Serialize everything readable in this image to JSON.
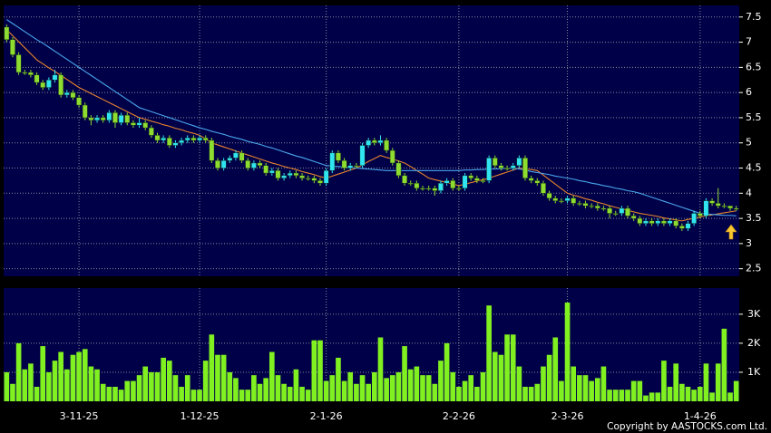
{
  "chart_data": {
    "type": "candlestick",
    "categories": [
      null,
      null,
      null,
      null,
      null,
      null,
      null,
      null,
      null,
      null,
      null,
      null,
      "3-11-25",
      null,
      null,
      null,
      null,
      null,
      null,
      null,
      null,
      null,
      null,
      null,
      null,
      null,
      null,
      null,
      null,
      null,
      null,
      null,
      "1-12-25",
      null,
      null,
      null,
      null,
      null,
      null,
      null,
      null,
      null,
      null,
      null,
      null,
      null,
      null,
      null,
      null,
      null,
      null,
      null,
      null,
      "2-1-26",
      null,
      null,
      null,
      null,
      null,
      null,
      null,
      null,
      null,
      null,
      null,
      null,
      null,
      null,
      null,
      null,
      null,
      null,
      null,
      null,
      null,
      "2-2-26",
      null,
      null,
      null,
      null,
      null,
      null,
      null,
      null,
      null,
      null,
      null,
      null,
      null,
      null,
      null,
      null,
      null,
      "2-3-26",
      null,
      null,
      null,
      null,
      null,
      null,
      null,
      null,
      null,
      null,
      null,
      null,
      null,
      null,
      null,
      null,
      null,
      null,
      null,
      null,
      null,
      "1-4-26",
      null,
      null,
      null,
      null,
      null,
      null
    ],
    "ohlc": [
      [
        7.3,
        7.35,
        7.0,
        7.05
      ],
      [
        7.05,
        7.1,
        6.7,
        6.75
      ],
      [
        6.75,
        6.8,
        6.35,
        6.4
      ],
      [
        6.4,
        6.45,
        6.35,
        6.4
      ],
      [
        6.4,
        6.45,
        6.3,
        6.35
      ],
      [
        6.35,
        6.4,
        6.15,
        6.2
      ],
      [
        6.2,
        6.25,
        6.05,
        6.1
      ],
      [
        6.1,
        6.3,
        6.05,
        6.25
      ],
      [
        6.25,
        6.45,
        6.2,
        6.35
      ],
      [
        6.35,
        6.4,
        5.9,
        5.95
      ],
      [
        5.95,
        6.05,
        5.9,
        6.0
      ],
      [
        6.0,
        6.05,
        5.85,
        5.9
      ],
      [
        5.9,
        5.95,
        5.7,
        5.75
      ],
      [
        5.75,
        5.8,
        5.45,
        5.5
      ],
      [
        5.5,
        5.55,
        5.35,
        5.45
      ],
      [
        5.45,
        5.55,
        5.4,
        5.5
      ],
      [
        5.5,
        5.55,
        5.4,
        5.45
      ],
      [
        5.45,
        5.65,
        5.4,
        5.6
      ],
      [
        5.6,
        5.65,
        5.3,
        5.4
      ],
      [
        5.4,
        5.6,
        5.35,
        5.55
      ],
      [
        5.55,
        5.6,
        5.35,
        5.4
      ],
      [
        5.4,
        5.45,
        5.3,
        5.35
      ],
      [
        5.35,
        5.5,
        5.3,
        5.4
      ],
      [
        5.4,
        5.45,
        5.25,
        5.3
      ],
      [
        5.3,
        5.35,
        5.1,
        5.15
      ],
      [
        5.15,
        5.2,
        5.0,
        5.05
      ],
      [
        5.05,
        5.15,
        5.0,
        5.1
      ],
      [
        5.1,
        5.15,
        4.9,
        4.95
      ],
      [
        4.95,
        5.05,
        4.9,
        5.0
      ],
      [
        5.0,
        5.1,
        4.95,
        5.05
      ],
      [
        5.05,
        5.15,
        5.0,
        5.1
      ],
      [
        5.1,
        5.15,
        5.0,
        5.05
      ],
      [
        5.05,
        5.15,
        5.0,
        5.1
      ],
      [
        5.1,
        5.15,
        5.0,
        5.05
      ],
      [
        5.05,
        5.1,
        4.6,
        4.65
      ],
      [
        4.65,
        4.7,
        4.45,
        4.5
      ],
      [
        4.5,
        4.7,
        4.45,
        4.65
      ],
      [
        4.65,
        4.75,
        4.6,
        4.7
      ],
      [
        4.7,
        4.85,
        4.65,
        4.8
      ],
      [
        4.8,
        4.85,
        4.6,
        4.65
      ],
      [
        4.65,
        4.7,
        4.45,
        4.5
      ],
      [
        4.5,
        4.65,
        4.45,
        4.6
      ],
      [
        4.6,
        4.65,
        4.5,
        4.55
      ],
      [
        4.55,
        4.6,
        4.35,
        4.4
      ],
      [
        4.4,
        4.5,
        4.35,
        4.45
      ],
      [
        4.45,
        4.5,
        4.25,
        4.3
      ],
      [
        4.3,
        4.4,
        4.25,
        4.35
      ],
      [
        4.35,
        4.45,
        4.3,
        4.4
      ],
      [
        4.4,
        4.45,
        4.3,
        4.35
      ],
      [
        4.35,
        4.4,
        4.25,
        4.3
      ],
      [
        4.3,
        4.35,
        4.25,
        4.3
      ],
      [
        4.3,
        4.35,
        4.2,
        4.25
      ],
      [
        4.25,
        4.3,
        4.15,
        4.2
      ],
      [
        4.2,
        4.5,
        4.15,
        4.45
      ],
      [
        4.45,
        4.85,
        4.4,
        4.8
      ],
      [
        4.8,
        4.85,
        4.6,
        4.65
      ],
      [
        4.65,
        4.7,
        4.45,
        4.5
      ],
      [
        4.5,
        4.6,
        4.45,
        4.55
      ],
      [
        4.55,
        4.6,
        4.5,
        4.55
      ],
      [
        4.55,
        5.0,
        4.5,
        4.95
      ],
      [
        4.95,
        5.1,
        4.9,
        5.05
      ],
      [
        5.05,
        5.1,
        4.95,
        5.0
      ],
      [
        5.0,
        5.15,
        4.95,
        5.05
      ],
      [
        5.05,
        5.1,
        4.8,
        4.85
      ],
      [
        4.85,
        4.9,
        4.55,
        4.6
      ],
      [
        4.6,
        4.65,
        4.3,
        4.35
      ],
      [
        4.35,
        4.4,
        4.15,
        4.2
      ],
      [
        4.2,
        4.25,
        4.15,
        4.2
      ],
      [
        4.2,
        4.25,
        4.05,
        4.1
      ],
      [
        4.1,
        4.15,
        4.05,
        4.1
      ],
      [
        4.1,
        4.15,
        4.05,
        4.1
      ],
      [
        4.1,
        4.15,
        3.95,
        4.05
      ],
      [
        4.05,
        4.25,
        4.0,
        4.2
      ],
      [
        4.2,
        4.3,
        4.15,
        4.25
      ],
      [
        4.25,
        4.3,
        4.05,
        4.1
      ],
      [
        4.1,
        4.15,
        4.05,
        4.1
      ],
      [
        4.1,
        4.4,
        4.05,
        4.35
      ],
      [
        4.35,
        4.4,
        4.25,
        4.3
      ],
      [
        4.3,
        4.35,
        4.2,
        4.25
      ],
      [
        4.25,
        4.3,
        4.2,
        4.25
      ],
      [
        4.25,
        4.75,
        4.2,
        4.7
      ],
      [
        4.7,
        4.75,
        4.5,
        4.55
      ],
      [
        4.55,
        4.6,
        4.45,
        4.5
      ],
      [
        4.5,
        4.55,
        4.45,
        4.5
      ],
      [
        4.5,
        4.6,
        4.45,
        4.55
      ],
      [
        4.55,
        4.75,
        4.5,
        4.7
      ],
      [
        4.7,
        4.75,
        4.25,
        4.3
      ],
      [
        4.3,
        4.35,
        4.2,
        4.25
      ],
      [
        4.25,
        4.3,
        4.15,
        4.2
      ],
      [
        4.2,
        4.25,
        3.95,
        4.0
      ],
      [
        4.0,
        4.05,
        3.85,
        3.9
      ],
      [
        3.9,
        3.95,
        3.8,
        3.85
      ],
      [
        3.85,
        3.9,
        3.8,
        3.85
      ],
      [
        3.85,
        3.95,
        3.8,
        3.9
      ],
      [
        3.9,
        3.95,
        3.75,
        3.8
      ],
      [
        3.8,
        3.85,
        3.75,
        3.8
      ],
      [
        3.8,
        3.85,
        3.7,
        3.75
      ],
      [
        3.75,
        3.8,
        3.7,
        3.75
      ],
      [
        3.75,
        3.8,
        3.65,
        3.7
      ],
      [
        3.7,
        3.75,
        3.65,
        3.7
      ],
      [
        3.7,
        3.75,
        3.5,
        3.6
      ],
      [
        3.6,
        3.65,
        3.55,
        3.6
      ],
      [
        3.6,
        3.75,
        3.55,
        3.7
      ],
      [
        3.7,
        3.75,
        3.5,
        3.55
      ],
      [
        3.55,
        3.6,
        3.45,
        3.5
      ],
      [
        3.5,
        3.55,
        3.35,
        3.4
      ],
      [
        3.4,
        3.5,
        3.35,
        3.45
      ],
      [
        3.45,
        3.5,
        3.35,
        3.4
      ],
      [
        3.4,
        3.5,
        3.35,
        3.45
      ],
      [
        3.45,
        3.5,
        3.35,
        3.4
      ],
      [
        3.4,
        3.5,
        3.35,
        3.45
      ],
      [
        3.45,
        3.5,
        3.3,
        3.35
      ],
      [
        3.35,
        3.4,
        3.25,
        3.3
      ],
      [
        3.3,
        3.45,
        3.25,
        3.4
      ],
      [
        3.4,
        3.65,
        3.35,
        3.6
      ],
      [
        3.6,
        3.65,
        3.5,
        3.55
      ],
      [
        3.55,
        3.9,
        3.5,
        3.85
      ],
      [
        3.85,
        3.9,
        3.75,
        3.8
      ],
      [
        3.8,
        4.1,
        3.7,
        3.75
      ],
      [
        3.75,
        3.8,
        3.7,
        3.75
      ],
      [
        3.75,
        3.75,
        3.65,
        3.7
      ],
      [
        3.7,
        3.75,
        3.65,
        3.7
      ]
    ],
    "up_color": "#30e4f0",
    "down_color": "#8fdc30",
    "ylim": [
      2.35,
      7.73
    ],
    "yticks": [
      2.5,
      3,
      3.5,
      4,
      4.5,
      5,
      5.5,
      6,
      6.5,
      7,
      7.5
    ],
    "grid": true,
    "lines": [
      {
        "color": "#e8842c",
        "values": [
          7.25,
          7.13,
          7.01,
          6.89,
          6.77,
          6.65,
          6.57,
          6.49,
          6.42,
          6.34,
          6.26,
          6.18,
          6.1,
          6.04,
          5.98,
          5.92,
          5.86,
          5.8,
          5.74,
          5.68,
          5.62,
          5.56,
          5.5,
          5.47,
          5.43,
          5.4,
          5.36,
          5.33,
          5.29,
          5.26,
          5.22,
          5.19,
          5.15,
          5.08,
          5.0,
          4.96,
          4.92,
          4.88,
          4.84,
          4.8,
          4.76,
          4.72,
          4.68,
          4.64,
          4.6,
          4.57,
          4.53,
          4.5,
          4.47,
          4.43,
          4.4,
          4.37,
          4.33,
          4.3,
          4.34,
          4.38,
          4.42,
          4.46,
          4.5,
          4.56,
          4.63,
          4.69,
          4.75,
          4.71,
          4.68,
          4.64,
          4.6,
          4.53,
          4.45,
          4.38,
          4.3,
          4.27,
          4.24,
          4.21,
          4.18,
          4.15,
          4.18,
          4.21,
          4.24,
          4.27,
          4.3,
          4.34,
          4.38,
          4.42,
          4.46,
          4.5,
          4.48,
          4.47,
          4.45,
          4.36,
          4.27,
          4.18,
          4.09,
          4.0,
          3.96,
          3.93,
          3.89,
          3.86,
          3.82,
          3.79,
          3.75,
          3.72,
          3.69,
          3.66,
          3.63,
          3.6,
          3.58,
          3.56,
          3.54,
          3.51,
          3.49,
          3.47,
          3.45,
          3.48,
          3.5,
          3.53,
          3.55,
          3.57,
          3.59,
          3.61,
          3.63,
          3.65
        ]
      },
      {
        "color": "#4aa6ec",
        "values": [
          7.45,
          7.37,
          7.29,
          7.21,
          7.13,
          7.05,
          6.98,
          6.9,
          6.82,
          6.74,
          6.66,
          6.58,
          6.5,
          6.42,
          6.34,
          6.26,
          6.18,
          6.1,
          6.02,
          5.94,
          5.86,
          5.78,
          5.7,
          5.66,
          5.62,
          5.58,
          5.54,
          5.5,
          5.46,
          5.42,
          5.38,
          5.34,
          5.3,
          5.27,
          5.23,
          5.2,
          5.17,
          5.13,
          5.1,
          5.07,
          5.03,
          5.0,
          4.97,
          4.93,
          4.9,
          4.86,
          4.82,
          4.78,
          4.74,
          4.71,
          4.67,
          4.63,
          4.59,
          4.55,
          4.54,
          4.53,
          4.52,
          4.51,
          4.5,
          4.49,
          4.48,
          4.47,
          4.46,
          4.45,
          4.45,
          4.45,
          4.45,
          4.45,
          4.45,
          4.45,
          4.45,
          4.45,
          4.45,
          4.45,
          4.45,
          4.45,
          4.46,
          4.46,
          4.47,
          4.47,
          4.48,
          4.48,
          4.49,
          4.49,
          4.5,
          4.48,
          4.46,
          4.43,
          4.41,
          4.39,
          4.37,
          4.34,
          4.32,
          4.3,
          4.28,
          4.25,
          4.23,
          4.2,
          4.18,
          4.15,
          4.13,
          4.1,
          4.08,
          4.05,
          4.03,
          4.0,
          3.96,
          3.92,
          3.88,
          3.84,
          3.8,
          3.76,
          3.72,
          3.68,
          3.64,
          3.6,
          3.59,
          3.58,
          3.57,
          3.56,
          3.56,
          3.55
        ]
      }
    ],
    "volume": {
      "color": "#80f020",
      "values": [
        1000,
        600,
        2000,
        1100,
        1300,
        500,
        1900,
        1000,
        1400,
        1700,
        1100,
        1600,
        1700,
        1800,
        1200,
        1100,
        600,
        500,
        500,
        400,
        700,
        700,
        900,
        1200,
        1000,
        1000,
        1500,
        1400,
        900,
        500,
        900,
        400,
        400,
        1400,
        2300,
        1600,
        1600,
        1000,
        800,
        400,
        400,
        900,
        600,
        800,
        1700,
        900,
        600,
        500,
        1100,
        500,
        400,
        2100,
        2100,
        700,
        900,
        1500,
        700,
        1000,
        600,
        900,
        600,
        1000,
        2200,
        800,
        900,
        1000,
        1900,
        1100,
        1200,
        900,
        900,
        600,
        1400,
        2000,
        1000,
        500,
        700,
        900,
        500,
        1000,
        3300,
        1700,
        1600,
        2300,
        2300,
        1200,
        500,
        500,
        600,
        1200,
        1600,
        2200,
        700,
        3400,
        1200,
        900,
        900,
        700,
        800,
        1200,
        400,
        400,
        400,
        400,
        700,
        700,
        200,
        300,
        300,
        1400,
        500,
        1300,
        600,
        500,
        400,
        500,
        1300,
        300,
        1300,
        2500,
        300,
        700
      ],
      "ylim": [
        0,
        3900
      ],
      "yticks": [
        {
          "value": 1000,
          "label": "1K"
        },
        {
          "value": 2000,
          "label": "2K"
        },
        {
          "value": 3000,
          "label": "3K"
        }
      ]
    }
  },
  "footer": {
    "copyright": "Copyright by AASTOCKS.com Ltd."
  }
}
